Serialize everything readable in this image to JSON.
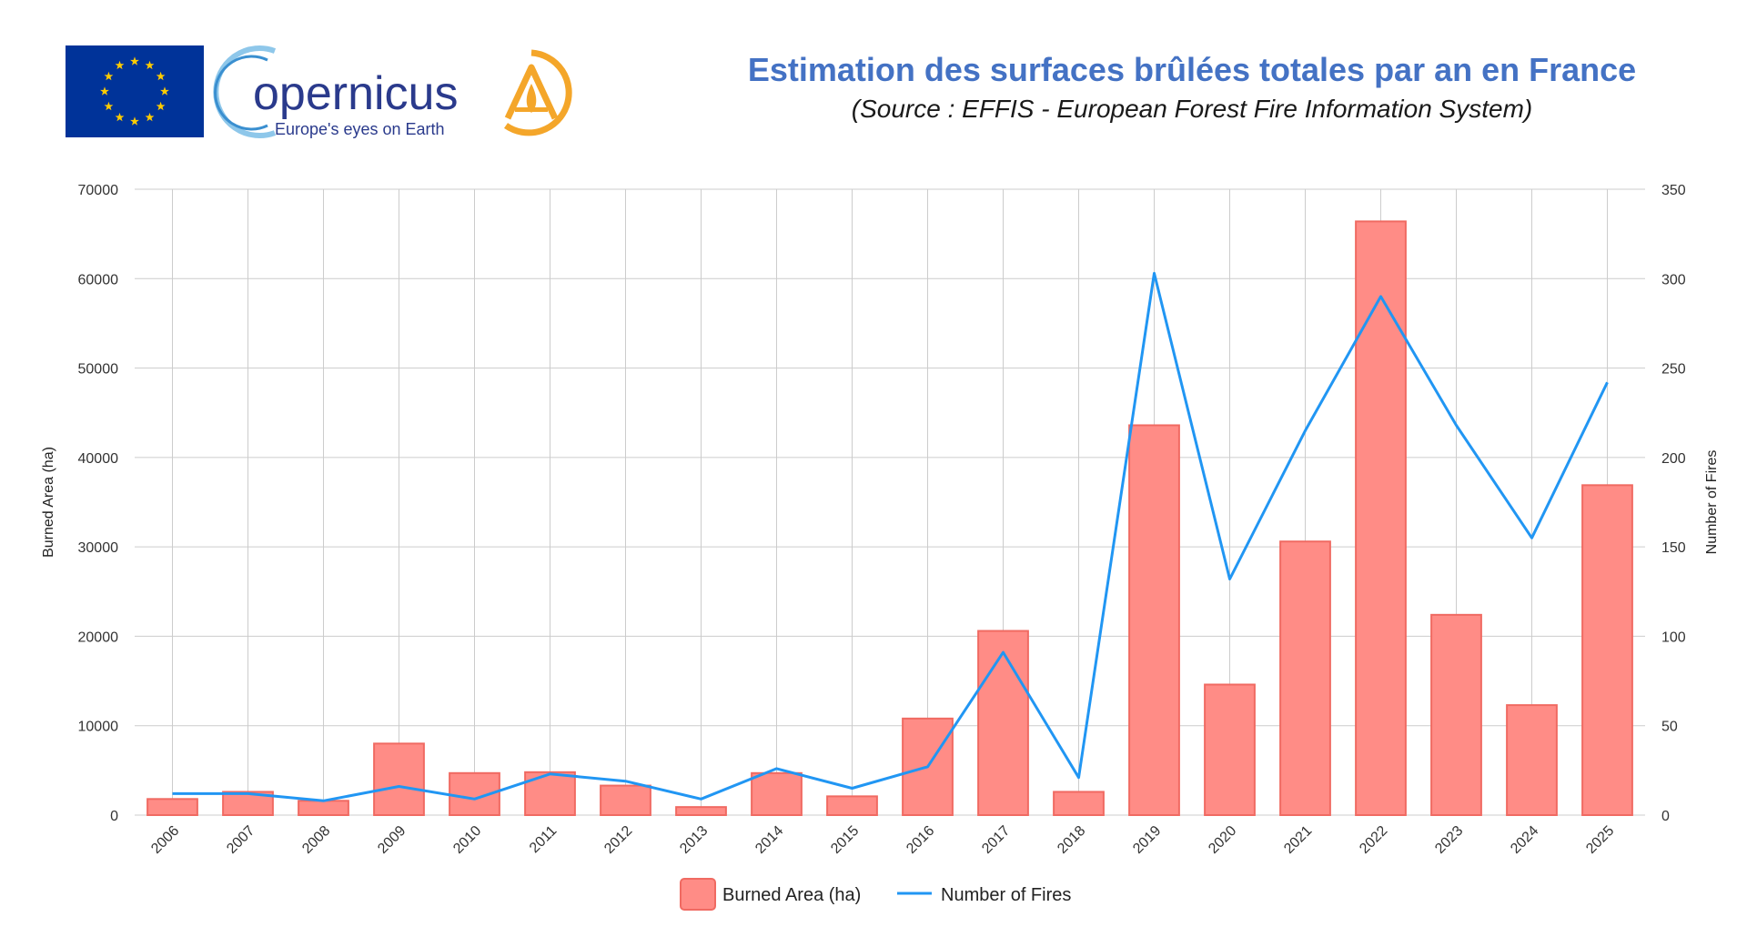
{
  "header": {
    "title": "Estimation des surfaces brûlées totales par an en France",
    "subtitle": "(Source : EFFIS - European Forest Fire Information System)",
    "logo_name": "opernicus",
    "logo_tagline": "Europe's eyes on Earth"
  },
  "colors": {
    "bar_fill": "#FF8C86",
    "bar_stroke": "#F06A62",
    "line": "#2196F3",
    "title": "#4472C4",
    "grid": "#CCCCCC"
  },
  "chart_data": {
    "type": "bar",
    "categories": [
      "2006",
      "2007",
      "2008",
      "2009",
      "2010",
      "2011",
      "2012",
      "2013",
      "2014",
      "2015",
      "2016",
      "2017",
      "2018",
      "2019",
      "2020",
      "2021",
      "2022",
      "2023",
      "2024",
      "2025"
    ],
    "series": [
      {
        "name": "Burned Area (ha)",
        "type": "bar",
        "axis": "left",
        "values": [
          1800,
          2600,
          1600,
          8000,
          4700,
          4800,
          3300,
          900,
          4700,
          2100,
          10800,
          20600,
          2600,
          43600,
          14600,
          30600,
          66400,
          22400,
          12300,
          36900
        ]
      },
      {
        "name": "Number of Fires",
        "type": "line",
        "axis": "right",
        "values": [
          12,
          12,
          8,
          16,
          9,
          23,
          19,
          9,
          26,
          15,
          27,
          91,
          21,
          303,
          132,
          215,
          290,
          218,
          155,
          242
        ]
      }
    ],
    "ylabel": "Burned Area (ha)",
    "y2label": "Number of Fires",
    "ylim": [
      0,
      70000
    ],
    "yticks": [
      0,
      10000,
      20000,
      30000,
      40000,
      50000,
      60000,
      70000
    ],
    "y2lim": [
      0,
      350
    ],
    "y2ticks": [
      0,
      50,
      100,
      150,
      200,
      250,
      300,
      350
    ],
    "grid": true,
    "legend_position": "bottom-center"
  }
}
